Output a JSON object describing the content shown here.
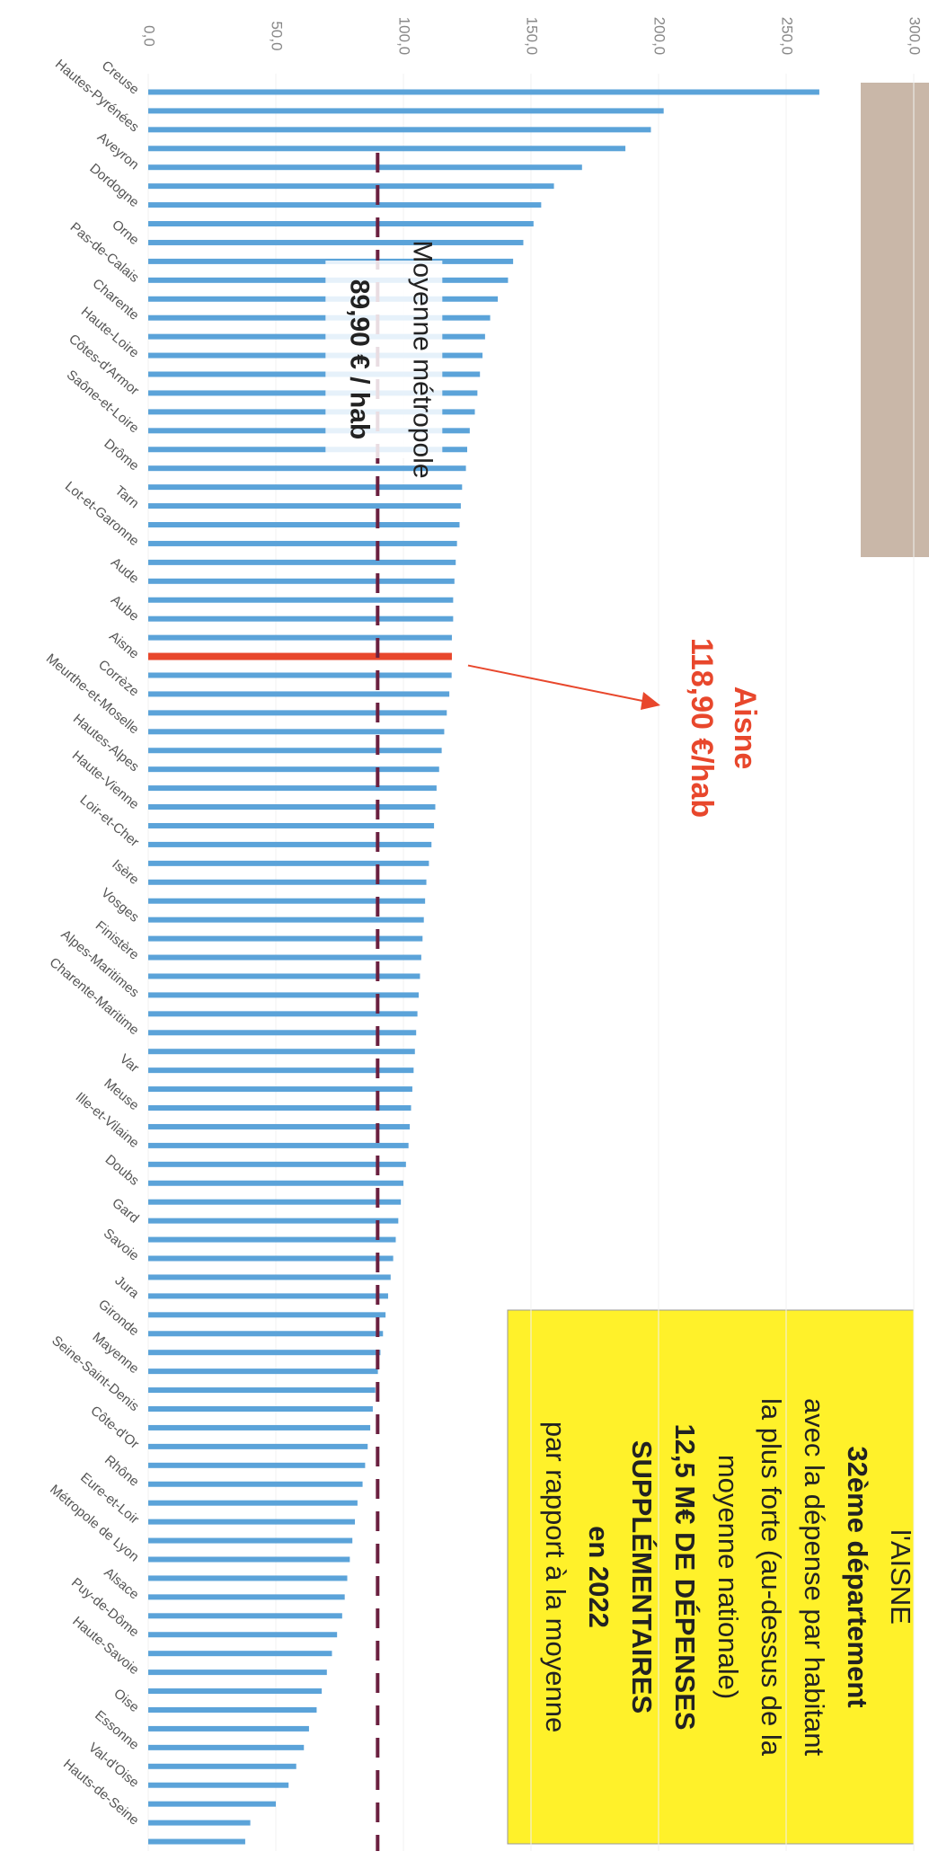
{
  "chart_data": {
    "type": "bar",
    "orientation": "horizontal",
    "categories": [
      "Creuse",
      null,
      "Hautes-Pyrénées",
      null,
      "Aveyron",
      null,
      "Dordogne",
      null,
      "Orne",
      null,
      "Pas-de-Calais",
      null,
      "Charente",
      null,
      "Haute-Loire",
      null,
      "Côtes-d'Armor",
      null,
      "Saône-et-Loire",
      null,
      "Drôme",
      null,
      "Tarn",
      null,
      "Lot-et-Garonne",
      null,
      "Aude",
      null,
      "Aube",
      null,
      "Aisne",
      null,
      "Corrèze",
      null,
      "Meurthe-et-Moselle",
      null,
      "Hautes-Alpes",
      null,
      "Haute-Vienne",
      null,
      "Loir-et-Cher",
      null,
      "Isère",
      null,
      "Vosges",
      null,
      "Finistère",
      null,
      "Alpes-Maritimes",
      null,
      "Charente-Maritime",
      null,
      "Var",
      null,
      "Meuse",
      null,
      "Ille-et-Vilaine",
      null,
      "Doubs",
      null,
      "Gard",
      null,
      "Savoie",
      null,
      "Jura",
      null,
      "Gironde",
      null,
      "Mayenne",
      null,
      "Seine-Saint-Denis",
      null,
      "Côte-d'Or",
      null,
      "Rhône",
      null,
      "Eure-et-Loir",
      null,
      "Métropole de Lyon",
      null,
      "Alsace",
      null,
      "Puy-de-Dôme",
      null,
      "Haute-Savoie",
      null,
      "Oise",
      null,
      "Essonne",
      null,
      "Val-d'Oise",
      null,
      "Hauts-de-Seine",
      null
    ],
    "values": [
      263,
      202,
      197,
      187,
      170,
      159,
      154,
      151,
      147,
      143,
      141,
      137,
      134,
      132,
      131,
      130,
      129,
      128,
      126,
      125,
      124.5,
      123,
      122.5,
      122,
      121,
      120.5,
      120,
      119.5,
      119.5,
      119,
      119,
      118.9,
      118,
      117,
      116,
      115,
      114,
      113,
      112.5,
      112,
      111,
      110,
      109,
      108.5,
      108,
      107.5,
      107,
      106.5,
      106,
      105.5,
      105,
      104.5,
      104,
      103.5,
      103,
      102.5,
      102,
      101,
      100,
      99,
      98,
      97,
      96,
      95,
      94,
      93,
      92,
      91,
      90,
      89,
      88,
      87,
      86,
      85,
      84,
      82,
      81,
      80,
      79,
      78,
      77,
      76,
      74,
      72,
      70,
      68,
      66,
      63,
      61,
      58,
      55,
      50,
      40,
      38
    ],
    "color": "#5ba3d9",
    "highlight_color": "#e8472c",
    "xlim": [
      0,
      300
    ],
    "xticks": [
      {
        "value": 0,
        "label": "0,0"
      },
      {
        "value": 50,
        "label": "50,0"
      },
      {
        "value": 100,
        "label": "100,0"
      },
      {
        "value": 150,
        "label": "150,0"
      },
      {
        "value": 200,
        "label": "200,0"
      },
      {
        "value": 250,
        "label": "250,0"
      },
      {
        "value": 300,
        "label": "300,0"
      }
    ],
    "grid": true,
    "highlight": {
      "label": "Aisne",
      "value_label": "118,90 €/hab"
    },
    "reference_line": {
      "value": 89.9,
      "label": "Moyenne métropole",
      "value_label": "89,90 € / hab",
      "color": "#6b2040"
    },
    "info_box": [
      "l'AISNE",
      "32ème département",
      "avec la dépense par habitant",
      "la plus forte (au-dessus de la",
      "moyenne nationale)",
      "12,5 M€ DE DÉPENSES",
      "SUPPLÉMENTAIRES",
      "en 2022",
      "par rapport à la moyenne"
    ]
  }
}
